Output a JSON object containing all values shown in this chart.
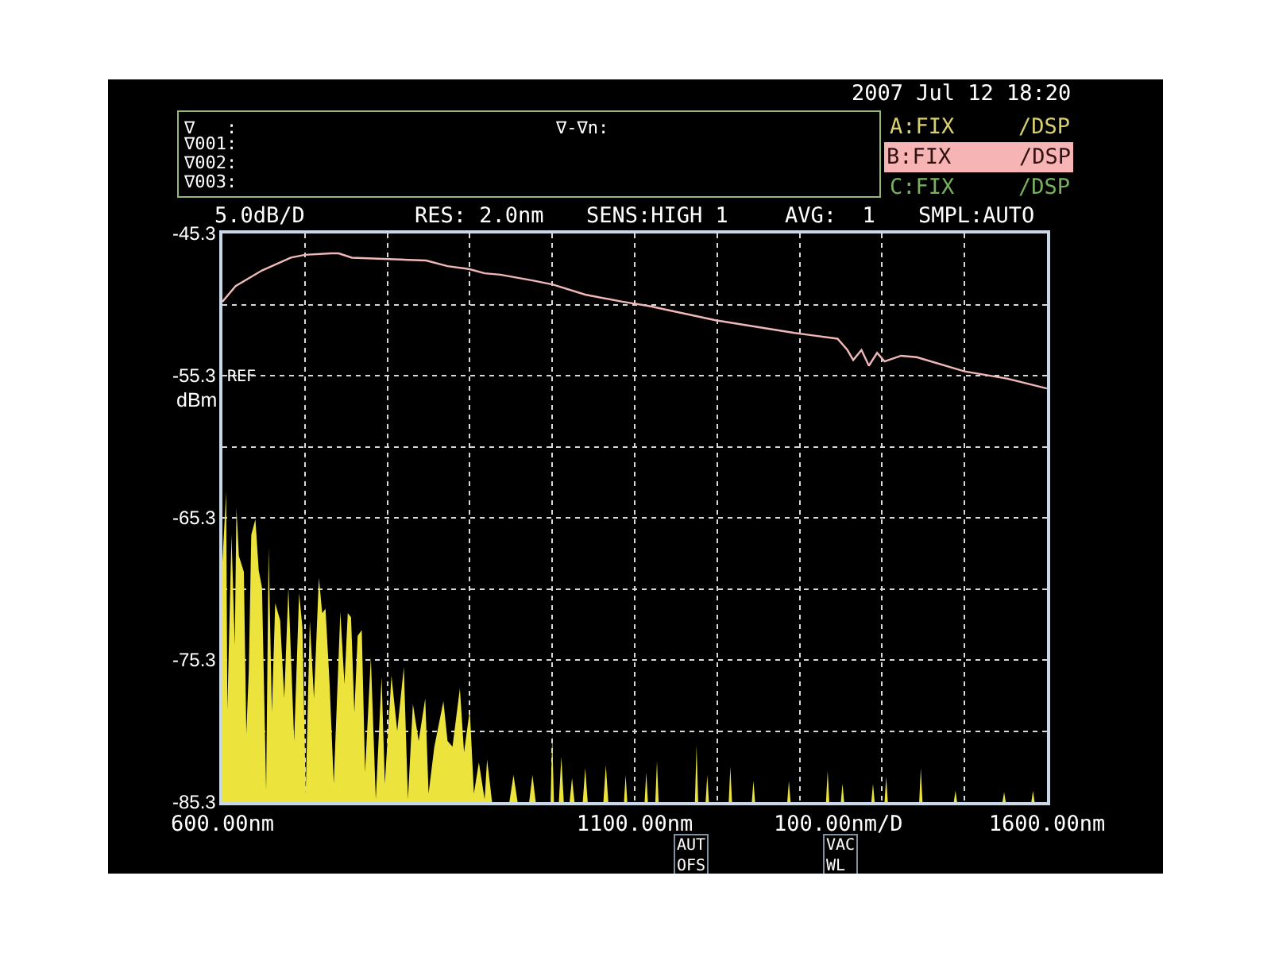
{
  "chart_data": {
    "type": "line",
    "annotations": [
      "2007 Jul 12 18:20",
      "∇   :",
      "∇001:",
      "∇002:",
      "∇003:",
      "∇-∇n:",
      "A:FIX",
      "/DSP",
      "B:FIX",
      "/DSP",
      "C:FIX",
      "/DSP",
      "5.0dB/D",
      "RES: 2.0nm",
      "SENS:HIGH 1",
      "AVG:  1",
      "SMPL:AUTO",
      "REF",
      "AUT\nOFS",
      "VAC\nWL"
    ],
    "xlabel": "100.00nm/D",
    "ylabel": "dBm",
    "xlim": [
      600,
      1600
    ],
    "xticks": [
      {
        "value": 600,
        "label": "600.00nm"
      },
      {
        "value": 700,
        "label": null
      },
      {
        "value": 800,
        "label": null
      },
      {
        "value": 900,
        "label": null
      },
      {
        "value": 1000,
        "label": null
      },
      {
        "value": 1100,
        "label": "1100.00nm"
      },
      {
        "value": 1200,
        "label": null
      },
      {
        "value": 1300,
        "label": null
      },
      {
        "value": 1400,
        "label": null
      },
      {
        "value": 1500,
        "label": null
      },
      {
        "value": 1600,
        "label": "1600.00nm"
      }
    ],
    "ylim": [
      -85.3,
      -45.3
    ],
    "yticks": [
      -45.3,
      {
        "value": -50.3,
        "label": null
      },
      -55.3,
      {
        "value": -60.3,
        "label": null
      },
      -65.3,
      {
        "value": -70.3,
        "label": null
      },
      -75.3,
      {
        "value": -80.3,
        "label": null
      },
      -85.3
    ],
    "grid": true,
    "line_style": "solid",
    "series": [
      {
        "type": "area",
        "color": "#ece43c",
        "x": [
          600,
          600,
          604.5,
          606,
          611,
          615,
          617,
          620,
          626,
          629,
          632,
          635,
          640,
          644,
          648,
          653,
          656,
          660,
          664,
          670,
          675,
          680,
          687,
          693,
          697,
          701,
          706,
          711,
          717,
          721,
          725,
          730,
          735,
          743,
          748,
          752,
          756,
          760,
          764,
          769,
          773,
          780,
          786,
          793,
          797,
          805,
          812,
          820,
          825,
          831,
          838,
          846,
          850,
          857,
          868,
          873,
          879,
          888,
          893,
          900,
          905,
          911,
          918,
          921,
          927,
          948,
          953,
          958,
          972,
          976,
          980,
          998,
          1000,
          1002,
          1008,
          1011,
          1014,
          1021,
          1024,
          1027,
          1037,
          1040,
          1043,
          1062,
          1065,
          1068,
          1087,
          1089,
          1091,
          1112,
          1114,
          1116,
          1125,
          1127,
          1129,
          1173,
          1175,
          1177,
          1186,
          1188,
          1190,
          1214,
          1216,
          1218,
          1242,
          1244,
          1246,
          1285,
          1287,
          1289,
          1332,
          1334,
          1336,
          1350,
          1352,
          1354,
          1387,
          1389,
          1391,
          1403,
          1405,
          1407,
          1445,
          1447,
          1449,
          1487,
          1489,
          1491,
          1546,
          1548,
          1550,
          1581,
          1583,
          1585,
          1600
        ],
        "values": [
          -85.3,
          -68.4,
          -63.5,
          -78.8,
          -66.5,
          -74.3,
          -64.6,
          -68.0,
          -69.1,
          -80.5,
          -76.0,
          -66.5,
          -65.4,
          -69.0,
          -70.2,
          -84.5,
          -67.4,
          -79.0,
          -71.3,
          -72.5,
          -78.0,
          -70.2,
          -81.0,
          -70.6,
          -73.0,
          -84.7,
          -72.5,
          -78.0,
          -69.5,
          -72.0,
          -71.7,
          -77.0,
          -84.0,
          -71.9,
          -77.0,
          -72.0,
          -72.3,
          -79.0,
          -73.6,
          -73.2,
          -83.2,
          -75.1,
          -85.1,
          -76.5,
          -84.0,
          -76.4,
          -80.3,
          -75.8,
          -85.1,
          -78.4,
          -81.0,
          -78.0,
          -84.7,
          -81.4,
          -78.2,
          -81.0,
          -81.4,
          -77.3,
          -81.8,
          -78.8,
          -84.7,
          -82.5,
          -85.1,
          -82.3,
          -85.3,
          -85.3,
          -83.4,
          -85.3,
          -85.3,
          -83.4,
          -85.3,
          -85.3,
          -80.6,
          -85.3,
          -85.3,
          -82.1,
          -85.3,
          -85.3,
          -83.6,
          -85.3,
          -85.3,
          -82.9,
          -85.3,
          -85.3,
          -82.7,
          -85.3,
          -85.3,
          -83.4,
          -85.3,
          -85.3,
          -83.2,
          -85.3,
          -85.3,
          -82.4,
          -85.3,
          -85.3,
          -81.3,
          -85.3,
          -85.3,
          -83.4,
          -85.3,
          -85.3,
          -82.8,
          -85.3,
          -85.3,
          -83.8,
          -85.3,
          -85.3,
          -83.8,
          -85.3,
          -85.3,
          -83.1,
          -85.3,
          -85.3,
          -84.0,
          -85.3,
          -85.3,
          -84.0,
          -85.3,
          -85.3,
          -83.5,
          -85.3,
          -85.3,
          -82.9,
          -85.3,
          -85.3,
          -84.5,
          -85.3,
          -85.3,
          -84.6,
          -85.3,
          -85.3,
          -84.5,
          -85.3,
          -85.3
        ]
      },
      {
        "color": "#f0b8b8",
        "x": [
          600,
          616,
          648,
          683,
          700,
          732,
          741,
          757,
          802,
          847,
          873,
          899,
          918,
          937,
          976,
          1001,
          1040,
          1085,
          1117,
          1198,
          1294,
          1346,
          1358,
          1365,
          1375,
          1384,
          1394,
          1403,
          1423,
          1442,
          1500,
          1551,
          1600
        ],
        "values": [
          -50.1,
          -49.0,
          -47.9,
          -47.0,
          -46.8,
          -46.7,
          -46.7,
          -47.0,
          -47.1,
          -47.2,
          -47.6,
          -47.8,
          -48.1,
          -48.2,
          -48.6,
          -48.9,
          -49.6,
          -50.1,
          -50.4,
          -51.4,
          -52.3,
          -52.7,
          -53.5,
          -54.2,
          -53.5,
          -54.6,
          -53.7,
          -54.3,
          -53.9,
          -54.0,
          -55.0,
          -55.5,
          -56.2
        ]
      }
    ]
  }
}
